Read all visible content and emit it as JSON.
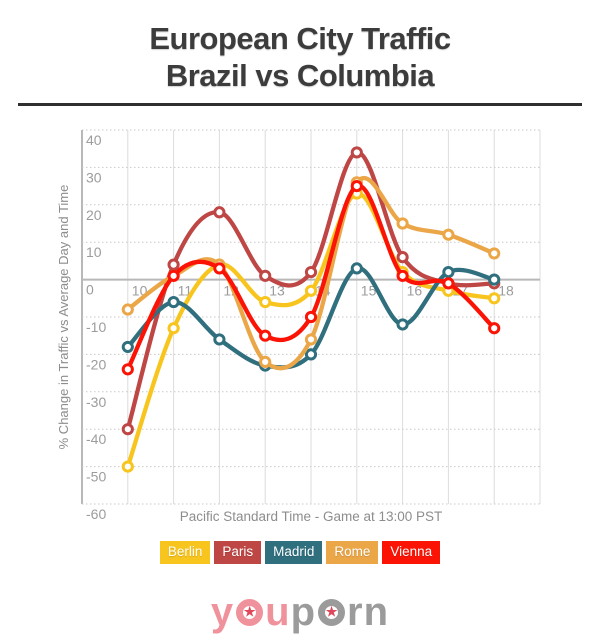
{
  "header": {
    "title_line1": "European City Traffic",
    "title_line2": "Brazil vs Columbia"
  },
  "chart_data": {
    "type": "line",
    "x": [
      10,
      11,
      12,
      13,
      14,
      15,
      16,
      17,
      18
    ],
    "series": [
      {
        "name": "Berlin",
        "color": "#F7C51E",
        "values": [
          -50,
          -13,
          4,
          -6,
          -3,
          23,
          2,
          -3,
          -5
        ]
      },
      {
        "name": "Paris",
        "color": "#BE4745",
        "values": [
          -40,
          4,
          18,
          1,
          2,
          34,
          6,
          -1,
          -1
        ]
      },
      {
        "name": "Madrid",
        "color": "#2F6F7E",
        "values": [
          -18,
          -6,
          -16,
          -23,
          -20,
          3,
          -12,
          2,
          0
        ]
      },
      {
        "name": "Rome",
        "color": "#EBA648",
        "values": [
          -8,
          1,
          4,
          -22,
          -16,
          26,
          15,
          12,
          7
        ]
      },
      {
        "name": "Vienna",
        "color": "#FB1405",
        "values": [
          -24,
          1,
          3,
          -15,
          -10,
          25,
          1,
          -1,
          -13
        ]
      }
    ],
    "xlabel": "Pacific Standard Time - Game at 13:00 PST",
    "ylabel": "% Change in Traffic vs Average Day and Time",
    "xlim": [
      9,
      19
    ],
    "ylim": [
      -60,
      40
    ],
    "ytick_step": 10,
    "grid": true,
    "legend_position": "bottom",
    "colors": {
      "grid_vertical": "#dcdcdc",
      "grid_dotted": "#c9c9c9",
      "zero_line": "#b8b8b8",
      "axis_line": "#a0a0a0",
      "tick_text": "#9c9c9c",
      "axis_title_text": "#8d8d8d"
    }
  },
  "logo": {
    "part1": "you",
    "part2": "porn",
    "star": "★"
  }
}
